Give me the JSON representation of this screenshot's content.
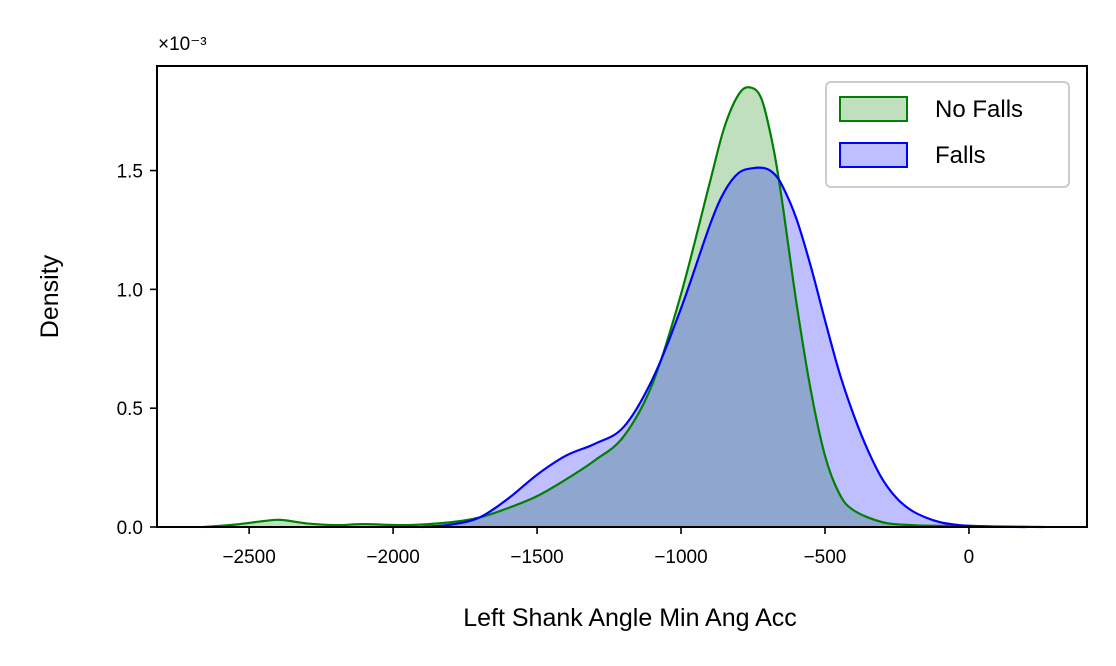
{
  "chart_data": {
    "type": "area",
    "xlabel": "Left Shank Angle Min Ang Acc",
    "ylabel": "Density",
    "y_offset_label": "×10⁻³",
    "xlim": [
      -2820,
      410
    ],
    "ylim": [
      0,
      1.94
    ],
    "x_ticks": [
      -2500,
      -2000,
      -1500,
      -1000,
      -500,
      0
    ],
    "x_tick_labels": [
      "−2500",
      "−2000",
      "−1500",
      "−1000",
      "−500",
      "0"
    ],
    "y_ticks": [
      0,
      0.5,
      1.0,
      1.5
    ],
    "y_tick_labels": [
      "0.0",
      "0.5",
      "1.0",
      "1.5"
    ],
    "grid": false,
    "legend_position": "top-right",
    "series": [
      {
        "name": "No Falls",
        "color": "#008000",
        "fill": "#bfdfbf",
        "x": [
          -2660,
          -2550,
          -2450,
          -2390,
          -2300,
          -2200,
          -2100,
          -1950,
          -1800,
          -1700,
          -1600,
          -1500,
          -1400,
          -1300,
          -1200,
          -1100,
          -1000,
          -900,
          -850,
          -800,
          -760,
          -720,
          -680,
          -650,
          -600,
          -550,
          -500,
          -450,
          -400,
          -300,
          -200,
          -100,
          0,
          100,
          260
        ],
        "y": [
          0.0,
          0.01,
          0.025,
          0.03,
          0.015,
          0.008,
          0.012,
          0.008,
          0.02,
          0.04,
          0.08,
          0.13,
          0.2,
          0.28,
          0.38,
          0.6,
          0.98,
          1.45,
          1.68,
          1.82,
          1.85,
          1.8,
          1.6,
          1.38,
          0.95,
          0.58,
          0.3,
          0.14,
          0.07,
          0.02,
          0.008,
          0.005,
          0.005,
          0.002,
          0.0
        ]
      },
      {
        "name": "Falls",
        "color": "#0000ff",
        "fill": "#bfbfff",
        "x": [
          -1900,
          -1800,
          -1700,
          -1600,
          -1500,
          -1400,
          -1300,
          -1200,
          -1100,
          -1000,
          -900,
          -850,
          -800,
          -750,
          -710,
          -680,
          -650,
          -600,
          -550,
          -500,
          -450,
          -400,
          -350,
          -300,
          -250,
          -200,
          -150,
          -100,
          -50,
          0,
          100,
          200
        ],
        "y": [
          0.0,
          0.01,
          0.04,
          0.12,
          0.22,
          0.3,
          0.35,
          0.42,
          0.62,
          0.92,
          1.27,
          1.41,
          1.49,
          1.51,
          1.51,
          1.49,
          1.44,
          1.3,
          1.1,
          0.87,
          0.65,
          0.47,
          0.32,
          0.2,
          0.12,
          0.07,
          0.04,
          0.02,
          0.01,
          0.005,
          0.001,
          0.0
        ]
      }
    ]
  }
}
